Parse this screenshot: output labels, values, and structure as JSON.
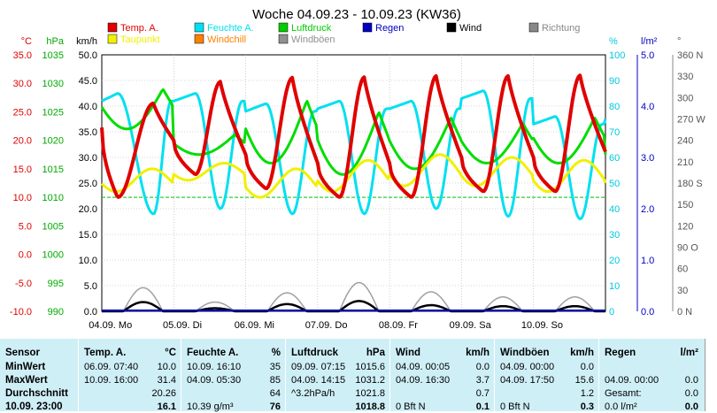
{
  "chart_data": {
    "type": "line",
    "title": "Woche 04.09.23 - 10.09.23 (KW36)",
    "x_categories": [
      "04.09. Mo",
      "05.09. Di",
      "06.09. Mi",
      "07.09. Do",
      "08.09. Fr",
      "09.09. Sa",
      "10.09. So"
    ],
    "legend": [
      {
        "name": "Temp. A.",
        "color": "#e00000"
      },
      {
        "name": "Feuchte A.",
        "color": "#00e0f0"
      },
      {
        "name": "Luftdruck",
        "color": "#00cc00"
      },
      {
        "name": "Regen",
        "color": "#0000c0"
      },
      {
        "name": "Wind",
        "color": "#000000"
      },
      {
        "name": "Richtung",
        "color": "#888888"
      },
      {
        "name": "Taupunkt",
        "color": "#f0f000"
      },
      {
        "name": "Windchill",
        "color": "#ff8000"
      },
      {
        "name": "Windböen",
        "color": "#909090"
      }
    ],
    "axes": {
      "temp": {
        "unit": "°C",
        "color": "#e00000",
        "ticks": [
          "35.0",
          "30.0",
          "25.0",
          "20.0",
          "15.0",
          "10.0",
          "5.0",
          "0.0",
          "-5.0",
          "-10.0"
        ],
        "range": [
          -10,
          35
        ]
      },
      "pressure": {
        "unit": "hPa",
        "color": "#00aa00",
        "ticks": [
          "1035",
          "1030",
          "1025",
          "1020",
          "1015",
          "1010",
          "1005",
          "1000",
          "995",
          "990"
        ],
        "range": [
          990,
          1035
        ]
      },
      "wind": {
        "unit": "km/h",
        "color": "#000000",
        "ticks": [
          "50.0",
          "45.0",
          "40.0",
          "35.0",
          "30.0",
          "25.0",
          "20.0",
          "15.0",
          "10.0",
          "5.0",
          "0.0"
        ],
        "range": [
          0,
          50
        ]
      },
      "humidity": {
        "unit": "%",
        "color": "#00c8e0",
        "ticks": [
          "100",
          "90",
          "80",
          "70",
          "60",
          "50",
          "40",
          "30",
          "20",
          "10",
          "0"
        ],
        "range": [
          0,
          100
        ]
      },
      "rain": {
        "unit": "l/m²",
        "color": "#0000c0",
        "ticks": [
          "5.0",
          "4.0",
          "3.0",
          "2.0",
          "1.0",
          "0.0"
        ],
        "range": [
          0,
          5
        ]
      },
      "direction": {
        "unit": "°",
        "color": "#555555",
        "ticks": [
          "360 N",
          "330",
          "300",
          "270 W",
          "240",
          "210",
          "180 S",
          "150",
          "120",
          "90 O",
          "60",
          "30",
          "0 N"
        ],
        "range": [
          0,
          360
        ]
      }
    },
    "days": [
      {
        "tmin": 10.0,
        "tmin_t": 0.22,
        "tmax": 26.5,
        "tmax_t": 0.72,
        "dmin": 11.0,
        "dmax": 15.0,
        "hmin": 38,
        "hmax": 85,
        "pmin": 1022.0,
        "pmax": 1029.0
      },
      {
        "tmin": 14.0,
        "tmin_t": 0.3,
        "tmax": 30.3,
        "tmax_t": 0.65,
        "dmin": 13.0,
        "dmax": 16.0,
        "hmin": 40,
        "hmax": 85,
        "pmin": 1017.5,
        "pmax": 1021.0
      },
      {
        "tmin": 11.5,
        "tmin_t": 0.28,
        "tmax": 31.0,
        "tmax_t": 0.65,
        "dmin": 10.0,
        "dmax": 15.0,
        "hmin": 38,
        "hmax": 81,
        "pmin": 1016.0,
        "pmax": 1027.0
      },
      {
        "tmin": 10.0,
        "tmin_t": 0.3,
        "tmax": 31.1,
        "tmax_t": 0.65,
        "dmin": 11.0,
        "dmax": 16.5,
        "hmin": 38,
        "hmax": 82,
        "pmin": 1014.0,
        "pmax": 1025.0
      },
      {
        "tmin": 10.0,
        "tmin_t": 0.3,
        "tmax": 31.3,
        "tmax_t": 0.65,
        "dmin": 12.0,
        "dmax": 17.5,
        "hmin": 40,
        "hmax": 82,
        "pmin": 1015.0,
        "pmax": 1024.0
      },
      {
        "tmin": 11.0,
        "tmin_t": 0.3,
        "tmax": 31.3,
        "tmax_t": 0.65,
        "dmin": 12.0,
        "dmax": 17.0,
        "hmin": 37,
        "hmax": 86,
        "pmin": 1016.0,
        "pmax": 1023.0
      },
      {
        "tmin": 11.0,
        "tmin_t": 0.3,
        "tmax": 31.4,
        "tmax_t": 0.65,
        "dmin": 11.0,
        "dmax": 16.5,
        "hmin": 36,
        "hmax": 76,
        "pmin": 1016.0,
        "pmax": 1024.0
      }
    ],
    "end_values": {
      "temp": 18.0,
      "dew": 12.5,
      "humidity": 75,
      "pressure": 1017.5
    },
    "reference_line_temp": 10.0,
    "wind_daily": [
      1.8,
      0.6,
      1.4,
      2.0,
      1.2,
      1.0,
      1.0
    ],
    "gust_daily": [
      4.6,
      1.8,
      3.6,
      5.6,
      3.8,
      2.8,
      2.8
    ],
    "grid": true
  },
  "table": {
    "headers": {
      "sensor": "Sensor",
      "temp": "Temp. A.",
      "temp_unit": "°C",
      "hum": "Feuchte A.",
      "hum_unit": "%",
      "press": "Luftdruck",
      "press_unit": "hPa",
      "wind": "Wind",
      "wind_unit": "km/h",
      "gust": "Windböen",
      "gust_unit": "km/h",
      "rain": "Regen",
      "rain_unit": "l/m²"
    },
    "rows": {
      "min": {
        "label": "MinWert",
        "temp_time": "06.09. 07:40",
        "temp_val": "10.0",
        "hum_time": "10.09. 16:10",
        "hum_val": "35",
        "press_time": "09.09. 07:15",
        "press_val": "1015.6",
        "wind_time": "04.09. 00:05",
        "wind_val": "0.0",
        "gust_time": "04.09. 00:00",
        "gust_val": "0.0",
        "rain_time": "",
        "rain_val": ""
      },
      "max": {
        "label": "MaxWert",
        "temp_time": "10.09. 16:00",
        "temp_val": "31.4",
        "hum_time": "04.09. 05:30",
        "hum_val": "85",
        "press_time": "04.09. 14:15",
        "press_val": "1031.2",
        "wind_time": "04.09. 16:30",
        "wind_val": "3.7",
        "gust_time": "04.09. 17:50",
        "gust_val": "15.6",
        "rain_time": "04.09. 00:00",
        "rain_val": "0.0"
      },
      "avg": {
        "label": "Durchschnitt",
        "temp_time": "",
        "temp_val": "20.26",
        "hum_time": "",
        "hum_val": "64",
        "press_time": "^3.2hPa/h",
        "press_val": "1021.8",
        "wind_time": "",
        "wind_val": "0.7",
        "gust_time": "",
        "gust_val": "1.2",
        "rain_time": "Gesamt:",
        "rain_val": "0.0"
      },
      "cur": {
        "label": "10.09. 23:00",
        "temp_time": "",
        "temp_val": "16.1",
        "hum_time": "10.39 g/m³",
        "hum_val": "76",
        "press_time": "",
        "press_val": "1018.8",
        "wind_time": "0 Bft N",
        "wind_val": "0.1",
        "gust_time": "0 Bft N",
        "gust_val": "0.3",
        "rain_time": "0.0 l/m²",
        "rain_val": "0.0"
      }
    }
  }
}
